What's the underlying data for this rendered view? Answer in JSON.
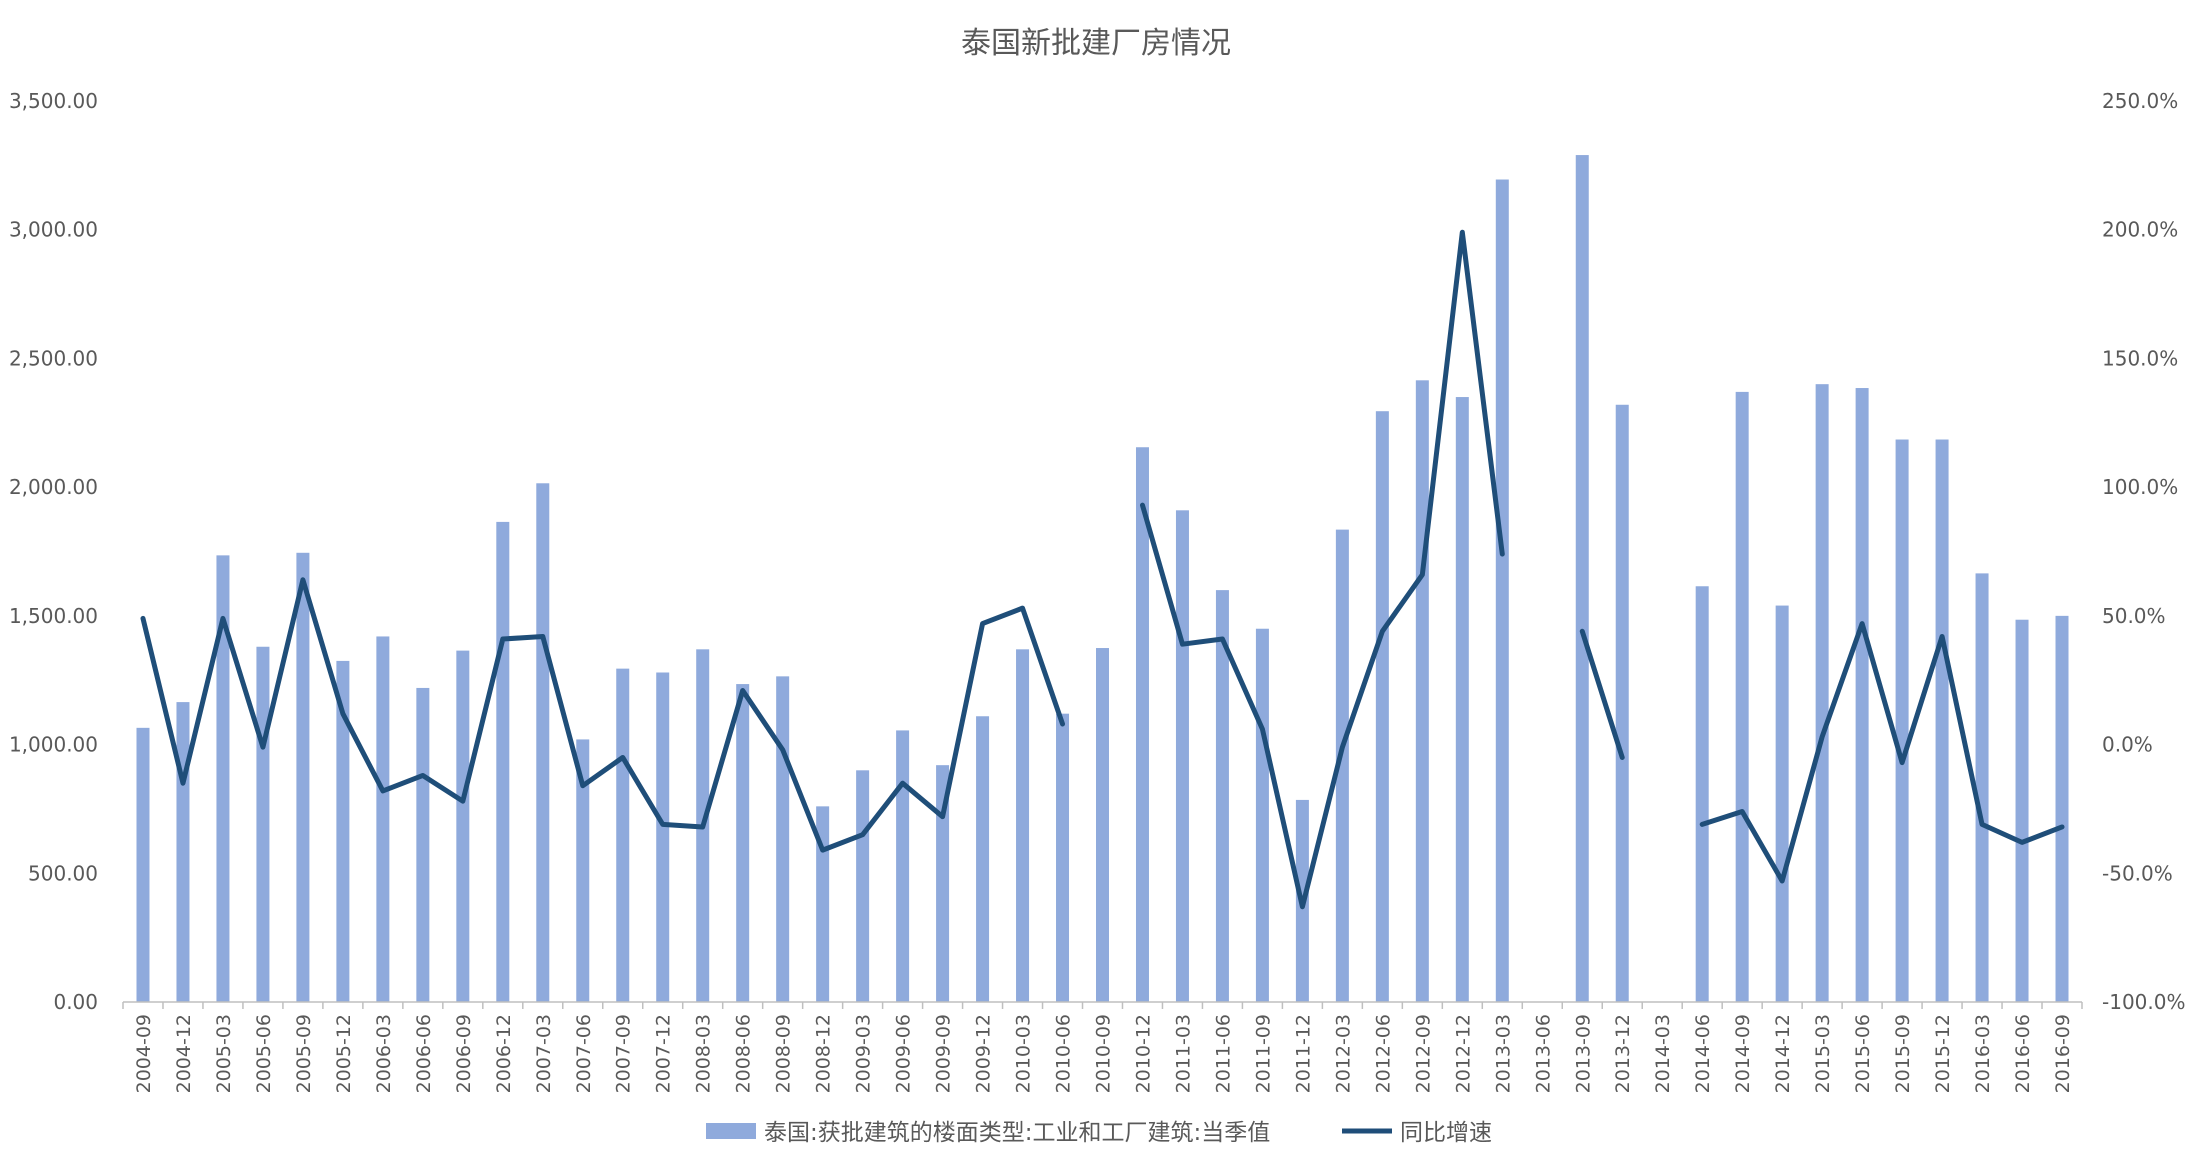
{
  "chart_data": {
    "type": "bar+line",
    "title": "泰国新批建厂房情况",
    "categories": [
      "2004-09",
      "2004-12",
      "2005-03",
      "2005-06",
      "2005-09",
      "2005-12",
      "2006-03",
      "2006-06",
      "2006-09",
      "2006-12",
      "2007-03",
      "2007-06",
      "2007-09",
      "2007-12",
      "2008-03",
      "2008-06",
      "2008-09",
      "2008-12",
      "2009-03",
      "2009-06",
      "2009-09",
      "2009-12",
      "2010-03",
      "2010-06",
      "2010-09",
      "2010-12",
      "2011-03",
      "2011-06",
      "2011-09",
      "2011-12",
      "2012-03",
      "2012-06",
      "2012-09",
      "2012-12",
      "2013-03",
      "2013-06",
      "2013-09",
      "2013-12",
      "2014-03",
      "2014-06",
      "2014-09",
      "2014-12",
      "2015-03",
      "2015-06",
      "2015-09",
      "2015-12",
      "2016-03",
      "2016-06",
      "2016-09"
    ],
    "series": [
      {
        "name": "泰国:获批建筑的楼面类型:工业和工厂建筑:当季值",
        "type": "bar",
        "axis": "left",
        "color": "#8FAADC",
        "values": [
          1065,
          1165,
          1735,
          1380,
          1745,
          1325,
          1420,
          1220,
          1365,
          1865,
          2015,
          1020,
          1295,
          1280,
          1370,
          1235,
          1265,
          760,
          900,
          1055,
          920,
          1110,
          1370,
          1120,
          1375,
          2155,
          1910,
          1600,
          1450,
          785,
          1835,
          2295,
          2415,
          2350,
          3195,
          null,
          3290,
          2320,
          null,
          1615,
          2370,
          1540,
          2400,
          2385,
          2185,
          2185,
          1665,
          1485,
          1500
        ]
      },
      {
        "name": "同比增速",
        "type": "line",
        "axis": "right",
        "color": "#1F4E79",
        "values": [
          49,
          -15,
          49,
          -1,
          64,
          12,
          -18,
          -12,
          -22,
          41,
          42,
          -16,
          -5,
          -31,
          -32,
          21,
          -2,
          -41,
          -35,
          -15,
          -28,
          47,
          53,
          8,
          null,
          93,
          39,
          41,
          6,
          -63,
          -1,
          44,
          66,
          199,
          74,
          null,
          44,
          -5,
          null,
          -31,
          -26,
          -53,
          3,
          47,
          -7,
          42,
          -31,
          -38,
          -32
        ]
      }
    ],
    "y_left": {
      "min": 0,
      "max": 3500,
      "ticks": [
        "0.00",
        "500.00",
        "1,000.00",
        "1,500.00",
        "2,000.00",
        "2,500.00",
        "3,000.00",
        "3,500.00"
      ]
    },
    "y_right": {
      "min": -100,
      "max": 250,
      "ticks": [
        "-100.0%",
        "-50.0%",
        "0.0%",
        "50.0%",
        "100.0%",
        "150.0%",
        "200.0%",
        "250.0%"
      ]
    },
    "legend_position": "bottom",
    "grid": false
  }
}
